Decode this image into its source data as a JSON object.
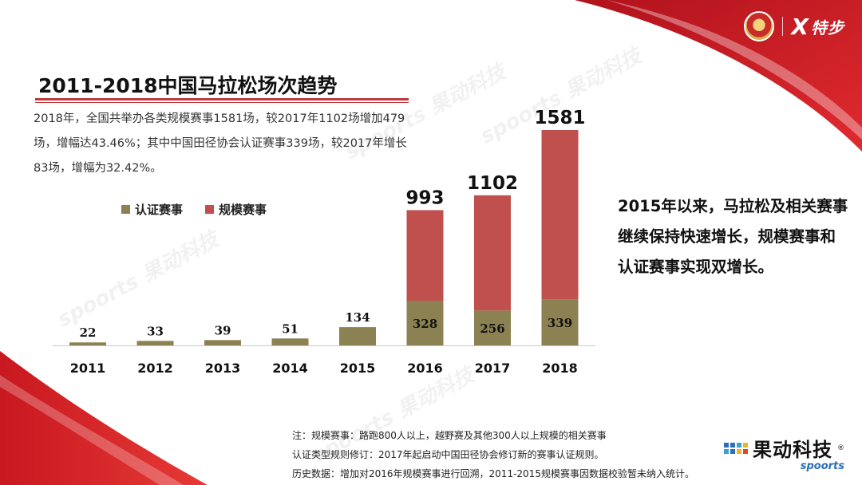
{
  "title": "2011-2018中国马拉松场次趋势",
  "intro": "2018年，全国共举办各类规模赛事1581场，较2017年1102场增加479场，增幅达43.46%；其中中国田径协会认证赛事339场，较2017年增长83场，增幅为32.42%。",
  "side_text": "2015年以来，马拉松及相关赛事继续保持快速增长，规模赛事和认证赛事实现双增长。",
  "notes": [
    "注：规模赛事：路跑800人以上，越野赛及其他300人以上规模的相关赛事",
    "认证类型规则修订：2017年起启动中国田径协会修订新的赛事认证规则。",
    "历史数据：增加对2016年规模赛事进行回溯，2011-2015规模赛事因数据校验暂未纳入统计。"
  ],
  "logos": {
    "top_brand": "特步",
    "top_brand_mark": "X",
    "bottom_cn": "果动科技",
    "bottom_en": "spoorts",
    "bottom_reg": "®"
  },
  "watermark_text": "spoorts 果动科技",
  "colors": {
    "certified": "#8c8152",
    "scale": "#c0504d",
    "accent": "#d8202a"
  },
  "chart_data": {
    "type": "bar",
    "stacked": true,
    "categories": [
      "2011",
      "2012",
      "2013",
      "2014",
      "2015",
      "2016",
      "2017",
      "2018"
    ],
    "series": [
      {
        "name": "认证赛事",
        "values": [
          22,
          33,
          39,
          51,
          134,
          328,
          256,
          339
        ]
      },
      {
        "name": "规模赛事",
        "values": [
          null,
          null,
          null,
          null,
          null,
          665,
          846,
          1242
        ]
      }
    ],
    "totals_labels": [
      "",
      "",
      "",
      "",
      "",
      "993",
      "1102",
      "1581"
    ],
    "legend": "top-left",
    "grid": false
  }
}
